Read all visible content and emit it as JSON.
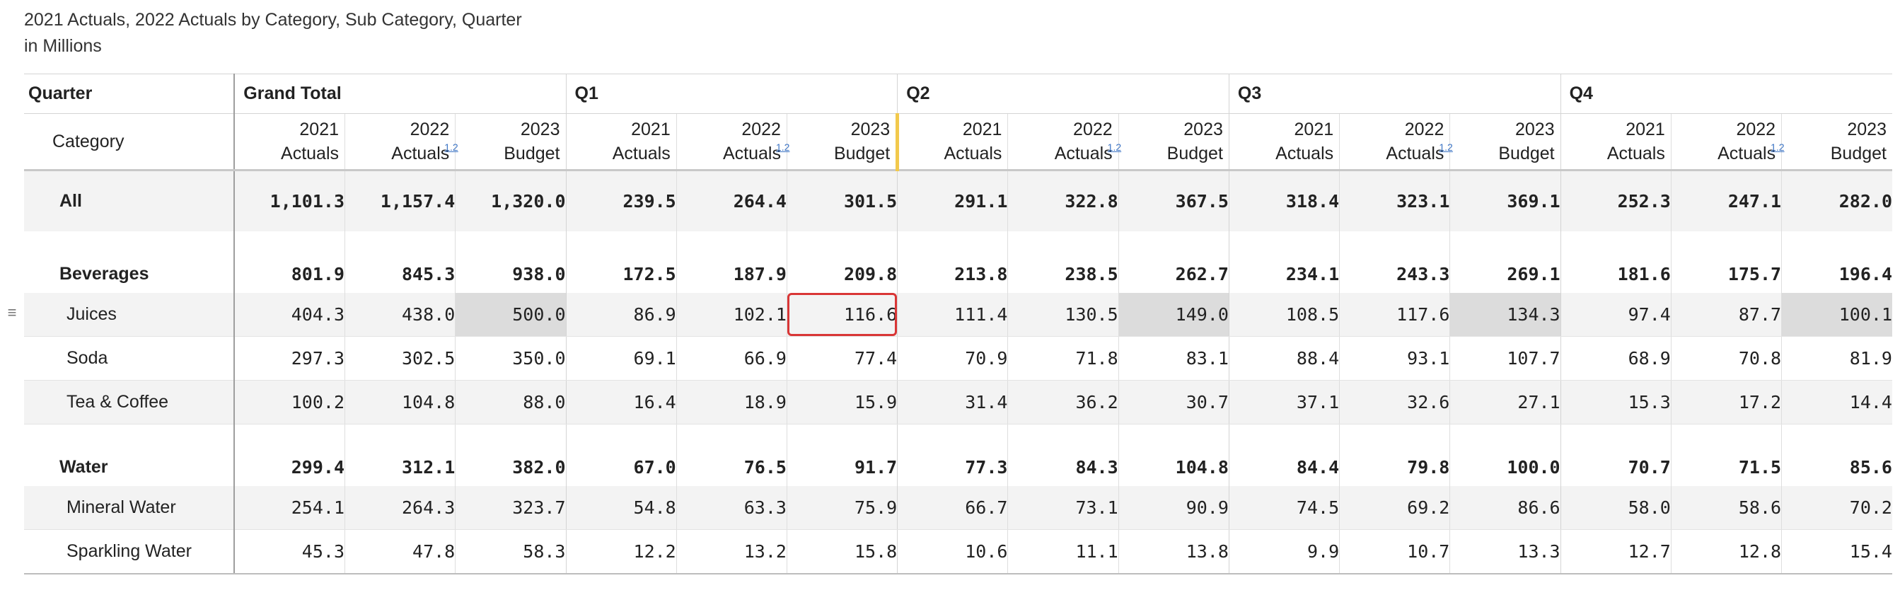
{
  "header": {
    "title": "2021 Actuals, 2022 Actuals by Category, Sub Category, Quarter",
    "subtitle": "in Millions"
  },
  "columns": {
    "corner_label": "Quarter",
    "row_header_label": "Category",
    "groups": [
      "Grand Total",
      "Q1",
      "Q2",
      "Q3",
      "Q4"
    ],
    "measures": [
      {
        "line1": "2021",
        "line2": "Actuals"
      },
      {
        "line1": "2022",
        "line2": "Actuals"
      },
      {
        "line1": "2023",
        "line2": "Budget"
      }
    ],
    "format_icon_text": "1.2"
  },
  "rows": [
    {
      "label": "All",
      "kind": "all",
      "values": [
        "1,101.3",
        "1,157.4",
        "1,320.0",
        "239.5",
        "264.4",
        "301.5",
        "291.1",
        "322.8",
        "367.5",
        "318.4",
        "323.1",
        "369.1",
        "252.3",
        "247.1",
        "282.0"
      ]
    },
    {
      "label": "Beverages",
      "kind": "group",
      "values": [
        "801.9",
        "845.3",
        "938.0",
        "172.5",
        "187.9",
        "209.8",
        "213.8",
        "238.5",
        "262.7",
        "234.1",
        "243.3",
        "269.1",
        "181.6",
        "175.7",
        "196.4"
      ]
    },
    {
      "label": "Juices",
      "kind": "item",
      "values": [
        "404.3",
        "438.0",
        "500.0",
        "86.9",
        "102.1",
        "116.6",
        "111.4",
        "130.5",
        "149.0",
        "108.5",
        "117.6",
        "134.3",
        "97.4",
        "87.7",
        "100.1"
      ]
    },
    {
      "label": "Soda",
      "kind": "item",
      "values": [
        "297.3",
        "302.5",
        "350.0",
        "69.1",
        "66.9",
        "77.4",
        "70.9",
        "71.8",
        "83.1",
        "88.4",
        "93.1",
        "107.7",
        "68.9",
        "70.8",
        "81.9"
      ]
    },
    {
      "label": "Tea & Coffee",
      "kind": "item",
      "values": [
        "100.2",
        "104.8",
        "88.0",
        "16.4",
        "18.9",
        "15.9",
        "31.4",
        "36.2",
        "30.7",
        "37.1",
        "32.6",
        "27.1",
        "15.3",
        "17.2",
        "14.4"
      ]
    },
    {
      "label": "Water",
      "kind": "group",
      "values": [
        "299.4",
        "312.1",
        "382.0",
        "67.0",
        "76.5",
        "91.7",
        "77.3",
        "84.3",
        "104.8",
        "84.4",
        "79.8",
        "100.0",
        "70.7",
        "71.5",
        "85.6"
      ]
    },
    {
      "label": "Mineral Water",
      "kind": "item",
      "values": [
        "254.1",
        "264.3",
        "323.7",
        "54.8",
        "63.3",
        "75.9",
        "66.7",
        "73.1",
        "90.9",
        "74.5",
        "69.2",
        "86.6",
        "58.0",
        "58.6",
        "70.2"
      ]
    },
    {
      "label": "Sparkling Water",
      "kind": "item",
      "values": [
        "45.3",
        "47.8",
        "58.3",
        "12.2",
        "13.2",
        "15.8",
        "10.6",
        "11.1",
        "13.8",
        "9.9",
        "10.7",
        "13.3",
        "12.7",
        "12.8",
        "15.4"
      ]
    }
  ],
  "row_handle_icon": "drag-handle-icon",
  "colors": {
    "selection": "#d93636",
    "highlight": "#dcdcdc",
    "marker": "#f2c94c"
  }
}
